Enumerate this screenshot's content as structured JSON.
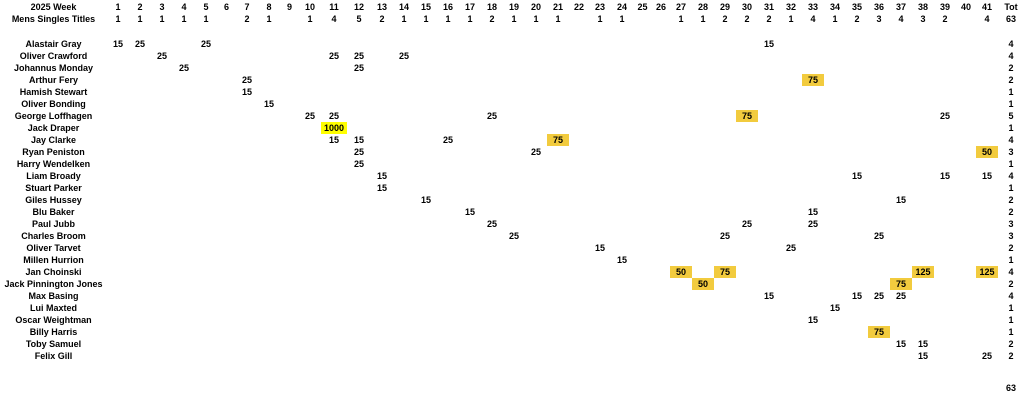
{
  "title_rows": {
    "row1_label": "2025 Week",
    "row2_label": "Mens Singles Titles",
    "tot_label": "Tot",
    "weeks": [
      "1",
      "2",
      "3",
      "4",
      "5",
      "6",
      "7",
      "8",
      "9",
      "10",
      "11",
      "12",
      "13",
      "14",
      "15",
      "16",
      "17",
      "18",
      "19",
      "20",
      "21",
      "22",
      "23",
      "24",
      "25",
      "26",
      "27",
      "28",
      "29",
      "30",
      "31",
      "32",
      "33",
      "34",
      "35",
      "36",
      "37",
      "38",
      "39",
      "40",
      "41"
    ],
    "week_title_counts": [
      "1",
      "1",
      "1",
      "1",
      "1",
      "",
      "2",
      "1",
      "",
      "1",
      "4",
      "5",
      "2",
      "1",
      "1",
      "1",
      "1",
      "2",
      "1",
      "1",
      "1",
      "",
      "1",
      "1",
      "",
      "",
      "1",
      "1",
      "2",
      "2",
      "2",
      "1",
      "4",
      "1",
      "2",
      "3",
      "4",
      "3",
      "2",
      "",
      "4"
    ],
    "season_total": "63"
  },
  "players": [
    {
      "name": "Alastair Gray",
      "total": "4",
      "points": [
        {
          "week": 1,
          "value": "15"
        },
        {
          "week": 2,
          "value": "25"
        },
        {
          "week": 5,
          "value": "25"
        },
        {
          "week": 31,
          "value": "15"
        }
      ]
    },
    {
      "name": "Oliver Crawford",
      "total": "4",
      "points": [
        {
          "week": 3,
          "value": "25"
        },
        {
          "week": 11,
          "value": "25"
        },
        {
          "week": 12,
          "value": "25"
        },
        {
          "week": 14,
          "value": "25"
        }
      ]
    },
    {
      "name": "Johannus Monday",
      "total": "2",
      "points": [
        {
          "week": 4,
          "value": "25"
        },
        {
          "week": 12,
          "value": "25"
        }
      ]
    },
    {
      "name": "Arthur Fery",
      "total": "2",
      "points": [
        {
          "week": 7,
          "value": "25"
        },
        {
          "week": 33,
          "value": "75",
          "hl": "gold"
        }
      ]
    },
    {
      "name": "Hamish Stewart",
      "total": "1",
      "points": [
        {
          "week": 7,
          "value": "15"
        }
      ]
    },
    {
      "name": "Oliver Bonding",
      "total": "1",
      "points": [
        {
          "week": 8,
          "value": "15"
        }
      ]
    },
    {
      "name": "George Loffhagen",
      "total": "5",
      "points": [
        {
          "week": 10,
          "value": "25"
        },
        {
          "week": 11,
          "value": "25"
        },
        {
          "week": 18,
          "value": "25"
        },
        {
          "week": 30,
          "value": "75",
          "hl": "gold"
        },
        {
          "week": 39,
          "value": "25"
        }
      ]
    },
    {
      "name": "Jack Draper",
      "total": "1",
      "points": [
        {
          "week": 11,
          "value": "1000",
          "hl": "yellow"
        }
      ]
    },
    {
      "name": "Jay Clarke",
      "total": "4",
      "points": [
        {
          "week": 11,
          "value": "15"
        },
        {
          "week": 12,
          "value": "15"
        },
        {
          "week": 16,
          "value": "25"
        },
        {
          "week": 21,
          "value": "75",
          "hl": "gold"
        }
      ]
    },
    {
      "name": "Ryan Peniston",
      "total": "3",
      "points": [
        {
          "week": 12,
          "value": "25"
        },
        {
          "week": 20,
          "value": "25"
        },
        {
          "week": 41,
          "value": "50",
          "hl": "gold"
        }
      ]
    },
    {
      "name": "Harry Wendelken",
      "total": "1",
      "points": [
        {
          "week": 12,
          "value": "25"
        }
      ]
    },
    {
      "name": "Liam Broady",
      "total": "4",
      "points": [
        {
          "week": 13,
          "value": "15"
        },
        {
          "week": 35,
          "value": "15"
        },
        {
          "week": 39,
          "value": "15"
        },
        {
          "week": 41,
          "value": "15"
        }
      ]
    },
    {
      "name": "Stuart Parker",
      "total": "1",
      "points": [
        {
          "week": 13,
          "value": "15"
        }
      ]
    },
    {
      "name": "Giles Hussey",
      "total": "2",
      "points": [
        {
          "week": 15,
          "value": "15"
        },
        {
          "week": 37,
          "value": "15"
        }
      ]
    },
    {
      "name": "Blu Baker",
      "total": "2",
      "points": [
        {
          "week": 17,
          "value": "15"
        },
        {
          "week": 33,
          "value": "15"
        }
      ]
    },
    {
      "name": "Paul Jubb",
      "total": "3",
      "points": [
        {
          "week": 18,
          "value": "25"
        },
        {
          "week": 30,
          "value": "25"
        },
        {
          "week": 33,
          "value": "25"
        }
      ]
    },
    {
      "name": "Charles Broom",
      "total": "3",
      "points": [
        {
          "week": 19,
          "value": "25"
        },
        {
          "week": 29,
          "value": "25"
        },
        {
          "week": 36,
          "value": "25"
        }
      ]
    },
    {
      "name": "Oliver Tarvet",
      "total": "2",
      "points": [
        {
          "week": 23,
          "value": "15"
        },
        {
          "week": 32,
          "value": "25"
        }
      ]
    },
    {
      "name": "Millen Hurrion",
      "total": "1",
      "points": [
        {
          "week": 24,
          "value": "15"
        }
      ]
    },
    {
      "name": "Jan Choinski",
      "total": "4",
      "points": [
        {
          "week": 27,
          "value": "50",
          "hl": "gold"
        },
        {
          "week": 29,
          "value": "75",
          "hl": "gold"
        },
        {
          "week": 38,
          "value": "125",
          "hl": "gold"
        },
        {
          "week": 41,
          "value": "125",
          "hl": "gold"
        }
      ]
    },
    {
      "name": "Jack Pinnington Jones",
      "total": "2",
      "points": [
        {
          "week": 28,
          "value": "50",
          "hl": "gold"
        },
        {
          "week": 37,
          "value": "75",
          "hl": "gold"
        }
      ]
    },
    {
      "name": "Max Basing",
      "total": "4",
      "points": [
        {
          "week": 31,
          "value": "15"
        },
        {
          "week": 35,
          "value": "15"
        },
        {
          "week": 36,
          "value": "25"
        },
        {
          "week": 37,
          "value": "25"
        }
      ]
    },
    {
      "name": "Lui Maxted",
      "total": "1",
      "points": [
        {
          "week": 34,
          "value": "15"
        }
      ]
    },
    {
      "name": "Oscar Weightman",
      "total": "1",
      "points": [
        {
          "week": 33,
          "value": "15"
        }
      ]
    },
    {
      "name": "Billy Harris",
      "total": "1",
      "points": [
        {
          "week": 36,
          "value": "75",
          "hl": "gold"
        }
      ]
    },
    {
      "name": "Toby Samuel",
      "total": "2",
      "points": [
        {
          "week": 37,
          "value": "15"
        },
        {
          "week": 38,
          "value": "15"
        }
      ]
    },
    {
      "name": "Felix Gill",
      "total": "2",
      "points": [
        {
          "week": 38,
          "value": "15"
        },
        {
          "week": 41,
          "value": "25"
        }
      ]
    }
  ],
  "footer": {
    "grand_total": "63"
  },
  "colors": {
    "background": "#FFFFFF",
    "text": "#000000",
    "highlight_yellow": "#FFFF00",
    "highlight_gold": "#F2CB3E"
  }
}
